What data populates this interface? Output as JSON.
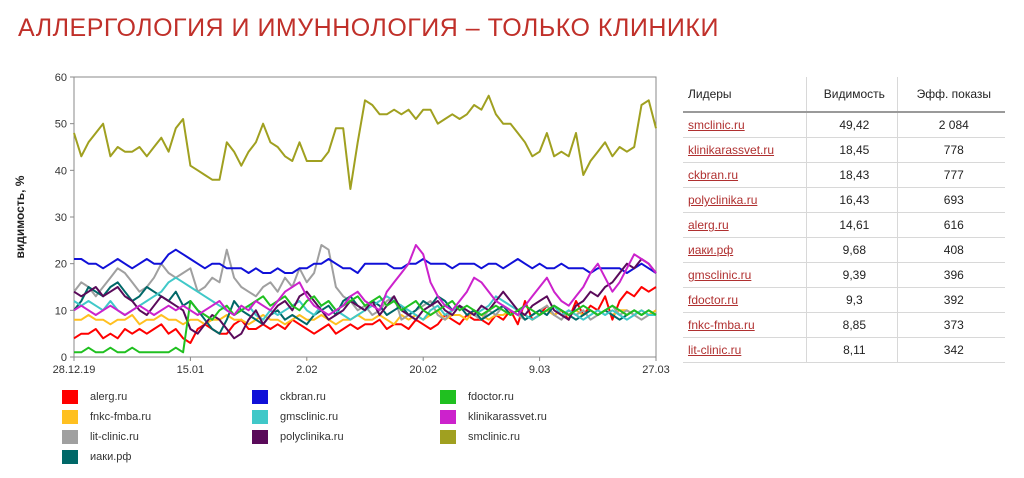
{
  "title": "АЛЛЕРГОЛОГИЯ И ИМУННОЛОГИЯ  – ТОЛЬКО КЛИНИКИ",
  "chart_data": {
    "type": "line",
    "ylabel": "видимость, %",
    "xlabel": "",
    "ylim": [
      0,
      60
    ],
    "yticks": [
      0,
      10,
      20,
      30,
      40,
      50,
      60
    ],
    "x_tick_labels": [
      "28.12.19",
      "15.01",
      "2.02",
      "20.02",
      "9.03",
      "27.03"
    ],
    "grid": false,
    "legend_position": "bottom",
    "series": [
      {
        "name": "alerg.ru",
        "color": "#ff0000",
        "values": [
          4,
          5,
          5,
          6,
          4,
          5,
          4,
          6,
          5,
          6,
          5,
          6,
          7,
          5,
          6,
          4,
          3,
          6,
          7,
          6,
          5,
          5,
          7,
          8,
          6,
          6,
          7,
          6,
          7,
          6,
          8,
          7,
          6,
          5,
          6,
          7,
          5,
          6,
          7,
          6,
          7,
          7,
          8,
          6,
          7,
          7,
          6,
          8,
          7,
          6,
          7,
          9,
          8,
          7,
          9,
          8,
          8,
          7,
          9,
          8,
          10,
          7,
          12,
          8,
          9,
          11,
          9,
          10,
          8,
          12,
          9,
          11,
          10,
          13,
          8,
          12,
          14,
          13,
          15,
          14,
          15
        ]
      },
      {
        "name": "fnkc-fmba.ru",
        "color": "#ffc020",
        "values": [
          8,
          8,
          9,
          8,
          8,
          7,
          8,
          8,
          9,
          7,
          8,
          8,
          9,
          8,
          8,
          7,
          8,
          8,
          7,
          8,
          8,
          9,
          8,
          8,
          7,
          8,
          9,
          8,
          8,
          7,
          8,
          9,
          8,
          8,
          9,
          8,
          7,
          8,
          8,
          9,
          8,
          8,
          9,
          8,
          7,
          9,
          8,
          9,
          8,
          9,
          10,
          8,
          9,
          9,
          8,
          10,
          9,
          8,
          9,
          9,
          10,
          9,
          9,
          8,
          9,
          10,
          9,
          10,
          9,
          10,
          9,
          10,
          9,
          10,
          9,
          10,
          10,
          9,
          10,
          9,
          10
        ]
      },
      {
        "name": "lit-clinic.ru",
        "color": "#a0a0a0",
        "values": [
          14,
          16,
          15,
          13,
          15,
          17,
          19,
          18,
          16,
          14,
          15,
          17,
          20,
          18,
          17,
          18,
          19,
          14,
          15,
          17,
          16,
          23,
          17,
          15,
          14,
          13,
          15,
          16,
          14,
          17,
          15,
          19,
          16,
          18,
          24,
          23,
          15,
          13,
          12,
          10,
          11,
          9,
          10,
          12,
          13,
          8,
          9,
          10,
          11,
          12,
          9,
          8,
          10,
          11,
          10,
          9,
          8,
          10,
          9,
          11,
          10,
          9,
          8,
          9,
          10,
          11,
          9,
          8,
          10,
          9,
          10,
          8,
          9,
          10,
          11,
          9,
          10,
          9,
          8,
          9,
          9
        ]
      },
      {
        "name": "иаки.рф",
        "color": "#006868",
        "values": [
          10,
          12,
          15,
          14,
          13,
          15,
          16,
          14,
          12,
          13,
          15,
          14,
          13,
          12,
          14,
          11,
          12,
          10,
          8,
          6,
          5,
          8,
          12,
          10,
          9,
          8,
          7,
          9,
          10,
          8,
          9,
          8,
          7,
          9,
          10,
          11,
          9,
          12,
          13,
          11,
          10,
          12,
          11,
          9,
          10,
          11,
          9,
          10,
          12,
          11,
          13,
          12,
          10,
          11,
          9,
          10,
          8,
          9,
          10,
          11,
          9,
          10,
          8,
          9,
          10,
          9,
          11,
          10,
          9,
          8,
          9,
          10,
          9,
          10,
          9,
          8,
          9,
          10,
          9,
          10,
          9
        ]
      },
      {
        "name": "ckbran.ru",
        "color": "#1010d8",
        "values": [
          21,
          21,
          20,
          20,
          19,
          20,
          21,
          20,
          19,
          20,
          21,
          20,
          20,
          22,
          23,
          22,
          21,
          20,
          19,
          20,
          20,
          19,
          19,
          19,
          18,
          19,
          18,
          18,
          19,
          18,
          18,
          19,
          19,
          20,
          20,
          21,
          20,
          19,
          19,
          18,
          20,
          20,
          20,
          20,
          19,
          19,
          20,
          20,
          21,
          20,
          20,
          20,
          19,
          20,
          20,
          20,
          19,
          20,
          20,
          19,
          20,
          21,
          20,
          19,
          20,
          19,
          19,
          20,
          19,
          19,
          19,
          18,
          19,
          19,
          19,
          19,
          18,
          19,
          20,
          19,
          18
        ]
      },
      {
        "name": "gmsclinic.ru",
        "color": "#40c8c8",
        "values": [
          12,
          11,
          12,
          11,
          10,
          12,
          10,
          9,
          10,
          11,
          12,
          13,
          14,
          16,
          17,
          16,
          15,
          14,
          13,
          12,
          11,
          10,
          9,
          10,
          11,
          9,
          8,
          10,
          9,
          10,
          11,
          12,
          10,
          9,
          11,
          12,
          10,
          9,
          8,
          9,
          10,
          11,
          12,
          13,
          12,
          11,
          10,
          9,
          8,
          10,
          11,
          9,
          10,
          11,
          10,
          9,
          10,
          11,
          13,
          12,
          11,
          10,
          9,
          8,
          9,
          10,
          11,
          9,
          10,
          9,
          8,
          9,
          10,
          9,
          10,
          9,
          8,
          9,
          10,
          9,
          9
        ]
      },
      {
        "name": "polyclinika.ru",
        "color": "#5a0a5a",
        "values": [
          14,
          13,
          14,
          15,
          13,
          14,
          15,
          13,
          12,
          10,
          9,
          11,
          13,
          12,
          11,
          10,
          6,
          5,
          7,
          9,
          8,
          6,
          4,
          5,
          8,
          10,
          7,
          9,
          11,
          12,
          10,
          13,
          14,
          12,
          10,
          8,
          9,
          10,
          12,
          11,
          10,
          12,
          9,
          11,
          13,
          10,
          9,
          8,
          10,
          11,
          12,
          10,
          9,
          11,
          10,
          9,
          11,
          10,
          12,
          14,
          12,
          10,
          9,
          11,
          12,
          13,
          10,
          9,
          8,
          11,
          12,
          14,
          13,
          15,
          16,
          18,
          20,
          19,
          21,
          20,
          18
        ]
      },
      {
        "name": "fdoctor.ru",
        "color": "#20c020",
        "values": [
          1,
          1,
          2,
          1,
          1,
          2,
          1,
          1,
          2,
          1,
          1,
          1,
          1,
          1,
          2,
          1,
          12,
          10,
          9,
          8,
          10,
          11,
          9,
          10,
          11,
          12,
          13,
          11,
          12,
          13,
          11,
          10,
          12,
          13,
          11,
          12,
          10,
          11,
          12,
          13,
          11,
          12,
          13,
          11,
          12,
          10,
          11,
          12,
          10,
          9,
          10,
          11,
          12,
          10,
          11,
          10,
          9,
          10,
          11,
          10,
          9,
          10,
          11,
          10,
          9,
          10,
          11,
          10,
          9,
          10,
          11,
          10,
          9,
          10,
          11,
          10,
          9,
          10,
          9,
          10,
          9
        ]
      },
      {
        "name": "klinikarassvet.ru",
        "color": "#cc22cc",
        "values": [
          10,
          11,
          10,
          9,
          10,
          11,
          10,
          9,
          10,
          11,
          10,
          9,
          10,
          11,
          10,
          11,
          10,
          9,
          10,
          11,
          12,
          10,
          9,
          11,
          10,
          12,
          11,
          10,
          12,
          14,
          15,
          16,
          13,
          11,
          10,
          9,
          10,
          11,
          13,
          14,
          12,
          11,
          10,
          14,
          16,
          18,
          20,
          24,
          22,
          16,
          13,
          11,
          10,
          12,
          14,
          17,
          16,
          14,
          12,
          11,
          10,
          9,
          11,
          13,
          15,
          17,
          14,
          12,
          11,
          13,
          15,
          18,
          20,
          17,
          14,
          16,
          19,
          22,
          21,
          20,
          18
        ]
      },
      {
        "name": "smclinic.ru",
        "color": "#a0a020",
        "values": [
          48,
          43,
          46,
          48,
          50,
          43,
          45,
          44,
          44,
          45,
          43,
          45,
          47,
          44,
          49,
          51,
          41,
          40,
          39,
          38,
          38,
          46,
          44,
          41,
          44,
          46,
          50,
          46,
          45,
          43,
          42,
          46,
          42,
          42,
          42,
          44,
          49,
          49,
          36,
          46,
          55,
          54,
          52,
          52,
          53,
          52,
          53,
          51,
          53,
          53,
          50,
          51,
          52,
          51,
          52,
          54,
          53,
          56,
          52,
          50,
          50,
          48,
          46,
          43,
          44,
          48,
          43,
          44,
          43,
          48,
          39,
          42,
          44,
          46,
          43,
          45,
          44,
          45,
          54,
          55,
          49
        ]
      }
    ]
  },
  "table": {
    "headers": [
      "Лидеры",
      "Видимость",
      "Эфф. показы"
    ],
    "rows": [
      [
        "smclinic.ru",
        "49,42",
        "2 084"
      ],
      [
        "klinikarassvet.ru",
        "18,45",
        "778"
      ],
      [
        "ckbran.ru",
        "18,43",
        "777"
      ],
      [
        "polyclinika.ru",
        "16,43",
        "693"
      ],
      [
        "alerg.ru",
        "14,61",
        "616"
      ],
      [
        "иаки.рф",
        "9,68",
        "408"
      ],
      [
        "gmsclinic.ru",
        "9,39",
        "396"
      ],
      [
        "fdoctor.ru",
        "9,3",
        "392"
      ],
      [
        "fnkc-fmba.ru",
        "8,85",
        "373"
      ],
      [
        "lit-clinic.ru",
        "8,11",
        "342"
      ]
    ]
  },
  "legend": [
    {
      "label": "alerg.ru",
      "color": "#ff0000"
    },
    {
      "label": "ckbran.ru",
      "color": "#1010d8"
    },
    {
      "label": "fdoctor.ru",
      "color": "#20c020"
    },
    {
      "label": "fnkc-fmba.ru",
      "color": "#ffc020"
    },
    {
      "label": "gmsclinic.ru",
      "color": "#40c8c8"
    },
    {
      "label": "klinikarassvet.ru",
      "color": "#cc22cc"
    },
    {
      "label": "lit-clinic.ru",
      "color": "#a0a0a0"
    },
    {
      "label": "polyclinika.ru",
      "color": "#5a0a5a"
    },
    {
      "label": "smclinic.ru",
      "color": "#a0a020"
    },
    {
      "label": "иаки.рф",
      "color": "#006868"
    }
  ]
}
